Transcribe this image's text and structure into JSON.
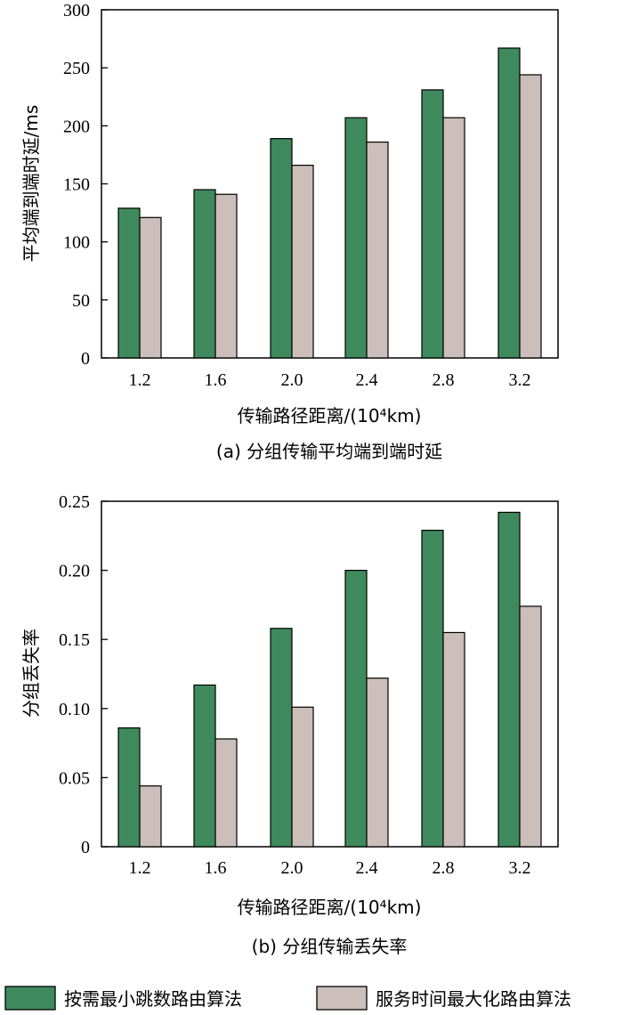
{
  "chart_data": [
    {
      "type": "bar",
      "caption": "(a) 分组传输平均端到端时延",
      "xlabel": "传输路径距离/(10⁴km)",
      "ylabel": "平均端到端时延/ms",
      "categories": [
        "1.2",
        "1.6",
        "2.0",
        "2.4",
        "2.8",
        "3.2"
      ],
      "ylim": [
        0,
        300
      ],
      "yticks": [
        "0",
        "50",
        "100",
        "150",
        "200",
        "250",
        "300"
      ],
      "ytick_values": [
        0,
        50,
        100,
        150,
        200,
        250,
        300
      ],
      "series": [
        {
          "name": "按需最小跳数路由算法",
          "values": [
            129,
            145,
            189,
            207,
            231,
            267
          ]
        },
        {
          "name": "服务时间最大化路由算法",
          "values": [
            121,
            141,
            166,
            186,
            207,
            244
          ]
        }
      ]
    },
    {
      "type": "bar",
      "caption": "(b) 分组传输丢失率",
      "xlabel": "传输路径距离/(10⁴km)",
      "ylabel": "分组丢失率",
      "categories": [
        "1.2",
        "1.6",
        "2.0",
        "2.4",
        "2.8",
        "3.2"
      ],
      "ylim": [
        0,
        0.25
      ],
      "yticks": [
        "0",
        "0.05",
        "0.10",
        "0.15",
        "0.20",
        "0.25"
      ],
      "ytick_values": [
        0,
        0.05,
        0.1,
        0.15,
        0.2,
        0.25
      ],
      "series": [
        {
          "name": "按需最小跳数路由算法",
          "values": [
            0.086,
            0.117,
            0.158,
            0.2,
            0.229,
            0.242
          ]
        },
        {
          "name": "服务时间最大化路由算法",
          "values": [
            0.044,
            0.078,
            0.101,
            0.122,
            0.155,
            0.174
          ]
        }
      ]
    }
  ],
  "legend": {
    "items": [
      {
        "label": "按需最小跳数路由算法",
        "color": "#3f8a5c"
      },
      {
        "label": "服务时间最大化路由算法",
        "color": "#cbbebb"
      }
    ]
  },
  "colors": {
    "series_a": "#3f8a5c",
    "series_b": "#cbbebb"
  }
}
